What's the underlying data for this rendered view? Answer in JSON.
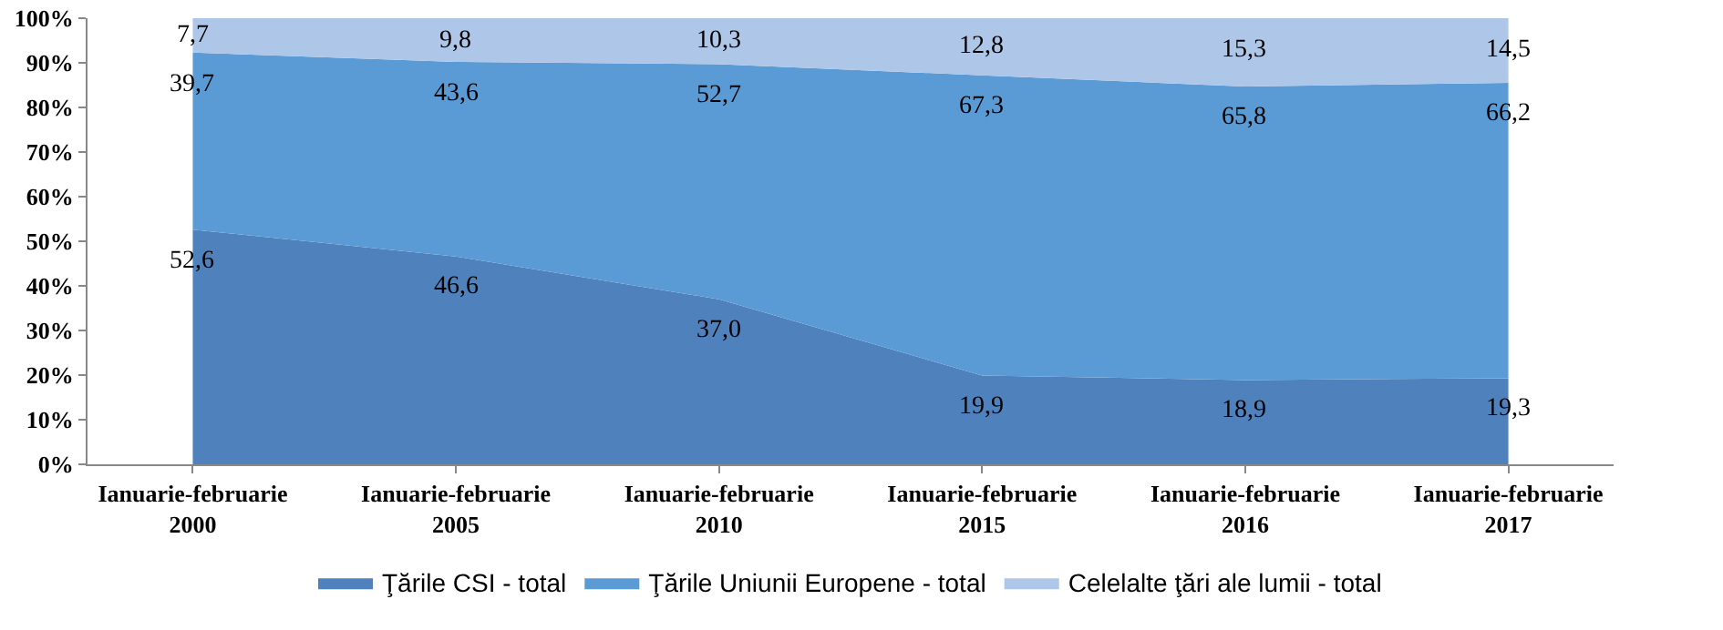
{
  "chart_data": {
    "type": "area",
    "stacked": true,
    "categories": [
      "Ianuarie-februarie\n2000",
      "Ianuarie-februarie\n2005",
      "Ianuarie-februarie\n2010",
      "Ianuarie-februarie\n2015",
      "Ianuarie-februarie\n2016",
      "Ianuarie-februarie\n2017"
    ],
    "series": [
      {
        "name": "Ţările CSI - total",
        "color": "#4f81bd",
        "values": [
          52.6,
          46.6,
          37.0,
          19.9,
          18.9,
          19.3
        ],
        "value_labels": [
          "52,6",
          "46,6",
          "37,0",
          "19,9",
          "18,9",
          "19,3"
        ]
      },
      {
        "name": "Ţările Uniunii Europene - total",
        "color": "#5b9bd5",
        "values": [
          39.7,
          43.6,
          52.7,
          67.3,
          65.8,
          66.2
        ],
        "value_labels": [
          "39,7",
          "43,6",
          "52,7",
          "67,3",
          "65,8",
          "66,2"
        ]
      },
      {
        "name": "Celelalte ţări ale lumii - total",
        "color": "#aec6e8",
        "values": [
          7.7,
          9.8,
          10.3,
          12.8,
          15.3,
          14.5
        ],
        "value_labels": [
          "7,7",
          "9,8",
          "10,3",
          "12,8",
          "15,3",
          "14,5"
        ]
      }
    ],
    "ylim": [
      0,
      100
    ],
    "yticks": [
      {
        "value": 0,
        "label": "0%"
      },
      {
        "value": 10,
        "label": "10%"
      },
      {
        "value": 20,
        "label": "20%"
      },
      {
        "value": 30,
        "label": "30%"
      },
      {
        "value": 40,
        "label": "40%"
      },
      {
        "value": 50,
        "label": "50%"
      },
      {
        "value": 60,
        "label": "60%"
      },
      {
        "value": 70,
        "label": "70%"
      },
      {
        "value": 80,
        "label": "80%"
      },
      {
        "value": 90,
        "label": "90%"
      },
      {
        "value": 100,
        "label": "100%"
      }
    ],
    "grid": false,
    "legend": "bottom"
  }
}
